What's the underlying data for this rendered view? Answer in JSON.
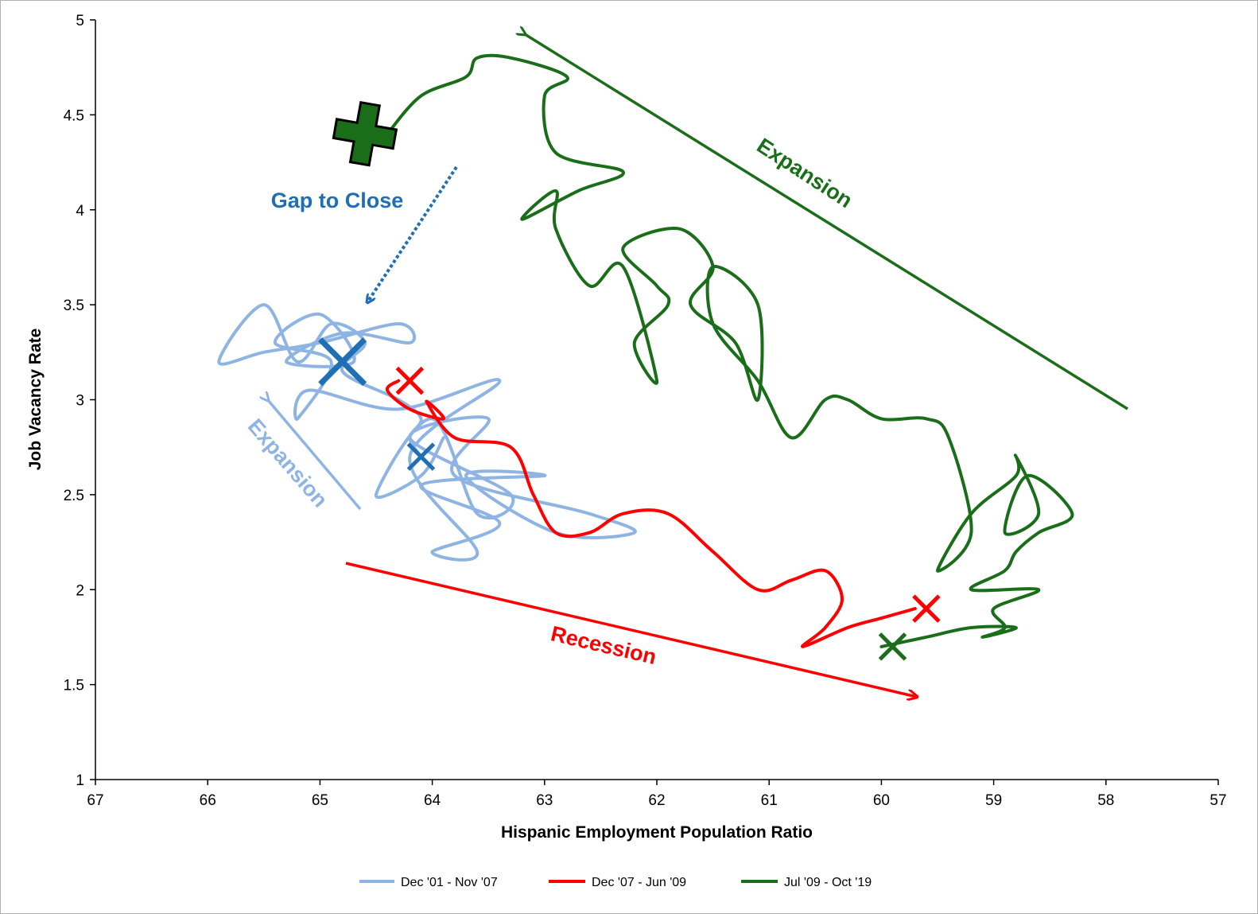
{
  "chart_data": {
    "type": "line",
    "xlabel": "Hispanic Employment  Population Ratio",
    "ylabel": "Job Vacancy  Rate",
    "xlim": [
      67,
      57
    ],
    "ylim": [
      1,
      5
    ],
    "x_reversed": true,
    "xticks": [
      "67",
      "66",
      "65",
      "64",
      "63",
      "62",
      "61",
      "60",
      "59",
      "58",
      "57"
    ],
    "yticks": [
      "1",
      "1.5",
      "2",
      "2.5",
      "3",
      "3.5",
      "4",
      "4.5",
      "5"
    ],
    "grid": false,
    "legend_position": "bottom",
    "series": [
      {
        "name": "Dec '01 - Nov '07",
        "color": "#8eb4e3",
        "points": [
          [
            63.9,
            2.8
          ],
          [
            64.1,
            2.6
          ],
          [
            64.5,
            2.5
          ],
          [
            64.0,
            2.9
          ],
          [
            63.6,
            2.4
          ],
          [
            63.3,
            2.5
          ],
          [
            64.2,
            2.8
          ],
          [
            63.5,
            2.9
          ],
          [
            63.8,
            2.6
          ],
          [
            62.6,
            2.4
          ],
          [
            62.2,
            2.3
          ],
          [
            62.9,
            2.3
          ],
          [
            63.7,
            2.6
          ],
          [
            63.0,
            2.6
          ],
          [
            64.1,
            2.55
          ],
          [
            63.4,
            2.35
          ],
          [
            64.0,
            2.2
          ],
          [
            63.6,
            2.2
          ],
          [
            64.2,
            2.7
          ],
          [
            63.4,
            3.1
          ],
          [
            64.3,
            2.95
          ],
          [
            65.1,
            3.05
          ],
          [
            65.2,
            2.9
          ],
          [
            64.9,
            3.2
          ],
          [
            65.4,
            3.3
          ],
          [
            65.0,
            3.45
          ],
          [
            64.7,
            3.2
          ],
          [
            65.3,
            3.2
          ],
          [
            64.8,
            3.35
          ],
          [
            64.2,
            3.3
          ],
          [
            64.3,
            3.4
          ],
          [
            65.0,
            3.3
          ],
          [
            65.5,
            3.25
          ],
          [
            65.9,
            3.2
          ],
          [
            65.5,
            3.5
          ],
          [
            65.2,
            3.2
          ],
          [
            64.9,
            3.4
          ],
          [
            64.6,
            3.3
          ],
          [
            64.8,
            3.15
          ],
          [
            64.3,
            3.0
          ],
          [
            64.1,
            2.9
          ],
          [
            64.2,
            2.8
          ],
          [
            64.1,
            2.7
          ]
        ]
      },
      {
        "name": "Dec '07 - Jun '09",
        "color": "#ff0000",
        "points": [
          [
            64.3,
            3.1
          ],
          [
            64.4,
            3.05
          ],
          [
            64.2,
            2.95
          ],
          [
            63.9,
            2.9
          ],
          [
            64.05,
            2.99
          ],
          [
            63.8,
            2.8
          ],
          [
            63.3,
            2.75
          ],
          [
            63.1,
            2.5
          ],
          [
            62.9,
            2.3
          ],
          [
            62.6,
            2.3
          ],
          [
            62.3,
            2.4
          ],
          [
            61.9,
            2.4
          ],
          [
            61.5,
            2.2
          ],
          [
            61.1,
            2.0
          ],
          [
            60.8,
            2.05
          ],
          [
            60.5,
            2.1
          ],
          [
            60.35,
            1.95
          ],
          [
            60.5,
            1.8
          ],
          [
            60.7,
            1.7
          ],
          [
            60.3,
            1.8
          ],
          [
            60.0,
            1.85
          ],
          [
            59.7,
            1.9
          ]
        ]
      },
      {
        "name": "Jul '09 - Oct '19",
        "color": "#1a6e1a",
        "points": [
          [
            60.0,
            1.7
          ],
          [
            59.6,
            1.75
          ],
          [
            59.2,
            1.8
          ],
          [
            58.8,
            1.8
          ],
          [
            59.1,
            1.75
          ],
          [
            58.9,
            1.8
          ],
          [
            59.0,
            1.9
          ],
          [
            58.6,
            2.0
          ],
          [
            59.2,
            2.0
          ],
          [
            58.9,
            2.1
          ],
          [
            58.8,
            2.2
          ],
          [
            58.6,
            2.3
          ],
          [
            58.3,
            2.4
          ],
          [
            58.7,
            2.6
          ],
          [
            58.9,
            2.3
          ],
          [
            58.6,
            2.4
          ],
          [
            58.8,
            2.7
          ],
          [
            58.8,
            2.6
          ],
          [
            59.2,
            2.4
          ],
          [
            59.5,
            2.1
          ],
          [
            59.2,
            2.3
          ],
          [
            59.4,
            2.8
          ],
          [
            59.6,
            2.9
          ],
          [
            60.0,
            2.9
          ],
          [
            60.3,
            3.0
          ],
          [
            60.5,
            3.0
          ],
          [
            60.8,
            2.8
          ],
          [
            61.1,
            3.1
          ],
          [
            61.5,
            3.4
          ],
          [
            61.5,
            3.7
          ],
          [
            61.1,
            3.5
          ],
          [
            61.1,
            3.0
          ],
          [
            61.3,
            3.3
          ],
          [
            61.7,
            3.5
          ],
          [
            61.5,
            3.7
          ],
          [
            61.8,
            3.9
          ],
          [
            62.3,
            3.8
          ],
          [
            62.0,
            3.6
          ],
          [
            61.9,
            3.5
          ],
          [
            62.2,
            3.3
          ],
          [
            62.0,
            3.1
          ],
          [
            62.3,
            3.7
          ],
          [
            62.6,
            3.6
          ],
          [
            62.9,
            3.9
          ],
          [
            62.9,
            4.1
          ],
          [
            63.2,
            3.95
          ],
          [
            62.7,
            4.1
          ],
          [
            62.3,
            4.2
          ],
          [
            62.9,
            4.3
          ],
          [
            63.0,
            4.6
          ],
          [
            62.8,
            4.7
          ],
          [
            63.3,
            4.8
          ],
          [
            63.6,
            4.8
          ],
          [
            63.7,
            4.7
          ],
          [
            64.1,
            4.6
          ],
          [
            64.4,
            4.4
          ]
        ]
      }
    ],
    "annotations": [
      {
        "text": "Expansion",
        "color": "#1a6e1a"
      },
      {
        "text": "Gap to Close",
        "color": "#1f6fb4"
      },
      {
        "text": "Expansion",
        "color": "#8eb4e3"
      },
      {
        "text": "Recession",
        "color": "#ff0000"
      }
    ],
    "markers": [
      {
        "shape": "plus",
        "color": "#1a6e1a",
        "x": 64.6,
        "y": 4.4
      },
      {
        "shape": "x",
        "color": "#1a6e1a",
        "x": 59.9,
        "y": 1.7
      },
      {
        "shape": "x",
        "color": "#ff0000",
        "x": 59.6,
        "y": 1.9
      },
      {
        "shape": "x",
        "color": "#ff0000",
        "x": 64.2,
        "y": 3.1
      },
      {
        "shape": "x",
        "color": "#1f6fb4",
        "x": 64.8,
        "y": 3.2
      },
      {
        "shape": "x",
        "color": "#1f6fb4",
        "x": 64.1,
        "y": 2.7
      }
    ]
  }
}
